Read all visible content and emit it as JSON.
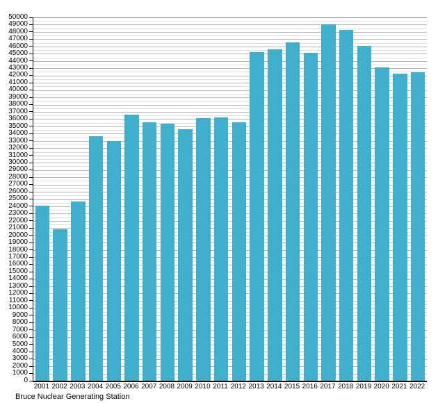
{
  "caption": "Bruce Nuclear Generating Station",
  "chart_data": {
    "type": "bar",
    "title": "Bruce Nuclear Generating Station",
    "xlabel": "",
    "ylabel": "",
    "categories": [
      "2001",
      "2002",
      "2003",
      "2004",
      "2005",
      "2006",
      "2007",
      "2008",
      "2009",
      "2010",
      "2011",
      "2012",
      "2013",
      "2014",
      "2015",
      "2016",
      "2017",
      "2018",
      "2019",
      "2020",
      "2021",
      "2022"
    ],
    "values": [
      24100,
      20850,
      24700,
      33650,
      32950,
      36600,
      35520,
      35330,
      34600,
      36100,
      36250,
      35600,
      45225,
      45620,
      46560,
      45150,
      49050,
      48250,
      46100,
      43080,
      42270,
      42490
    ],
    "ylim": [
      0,
      50000
    ],
    "y_tick_step": 1000,
    "y_minor_step": 500,
    "grid": true,
    "legend": "none",
    "colors": {
      "bar": "#3eafcc",
      "grid_major": "#b4b4b4",
      "grid_minor": "#dedede",
      "grid_top": "#909090",
      "axis": "#000000"
    }
  }
}
